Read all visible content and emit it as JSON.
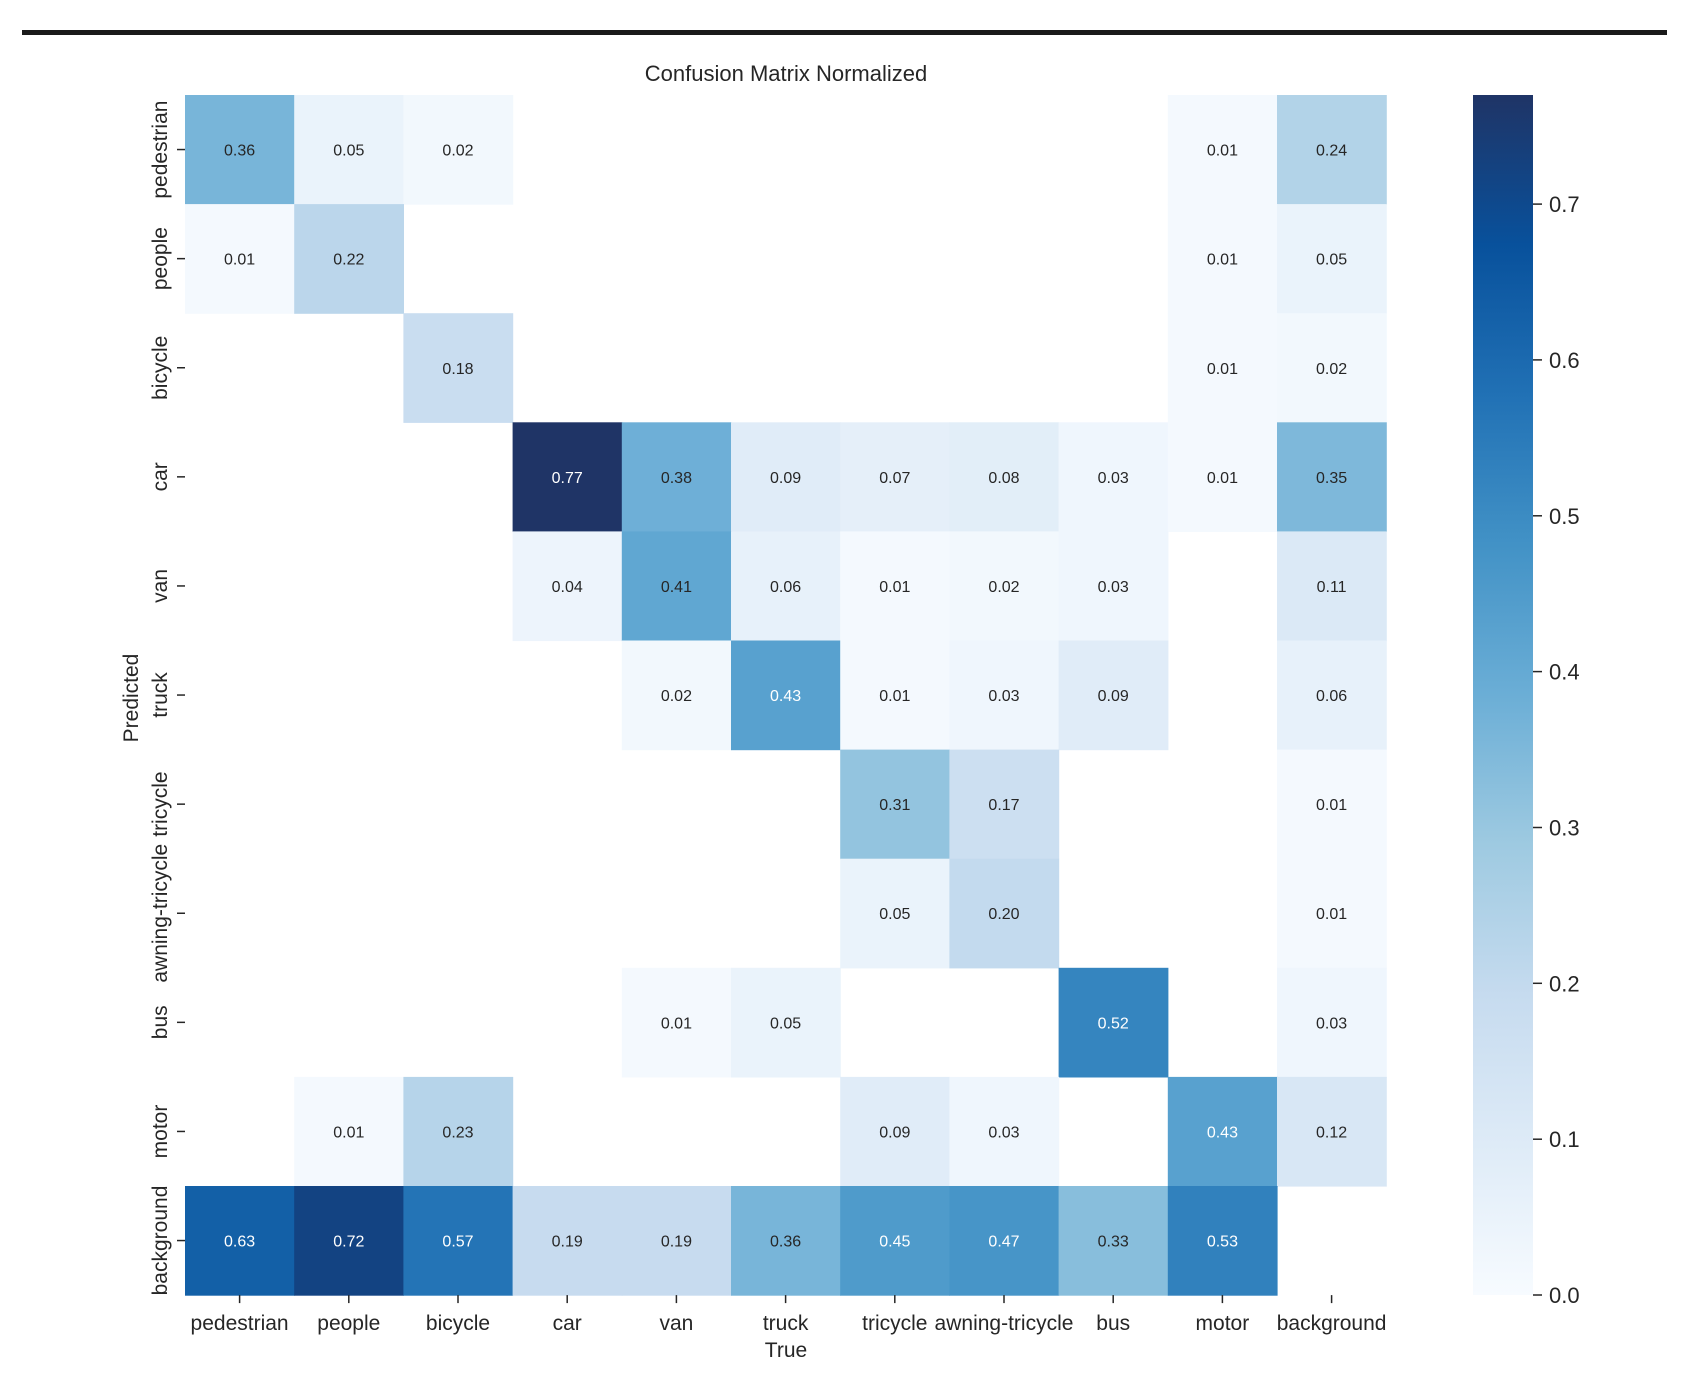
{
  "chart_data": {
    "type": "heatmap",
    "title": "Confusion Matrix Normalized",
    "xlabel": "True",
    "ylabel": "Predicted",
    "x_categories": [
      "pedestrian",
      "people",
      "bicycle",
      "car",
      "van",
      "truck",
      "tricycle",
      "awning-tricycle",
      "bus",
      "motor",
      "background"
    ],
    "y_categories": [
      "pedestrian",
      "people",
      "bicycle",
      "car",
      "van",
      "truck",
      "tricycle",
      "awning-tricycle",
      "bus",
      "motor",
      "background"
    ],
    "values": [
      [
        0.36,
        0.05,
        0.02,
        null,
        null,
        null,
        null,
        null,
        null,
        0.01,
        0.24
      ],
      [
        0.01,
        0.22,
        null,
        null,
        null,
        null,
        null,
        null,
        null,
        0.01,
        0.05
      ],
      [
        null,
        null,
        0.18,
        null,
        null,
        null,
        null,
        null,
        null,
        0.01,
        0.02
      ],
      [
        null,
        null,
        null,
        0.77,
        0.38,
        0.09,
        0.07,
        0.08,
        0.03,
        0.01,
        0.35
      ],
      [
        null,
        null,
        null,
        0.04,
        0.41,
        0.06,
        0.01,
        0.02,
        0.03,
        null,
        0.11
      ],
      [
        null,
        null,
        null,
        null,
        0.02,
        0.43,
        0.01,
        0.03,
        0.09,
        null,
        0.06
      ],
      [
        null,
        null,
        null,
        null,
        null,
        null,
        0.31,
        0.17,
        null,
        null,
        0.01
      ],
      [
        null,
        null,
        null,
        null,
        null,
        null,
        0.05,
        0.2,
        null,
        null,
        0.01
      ],
      [
        null,
        null,
        null,
        null,
        0.01,
        0.05,
        null,
        null,
        0.52,
        null,
        0.03
      ],
      [
        null,
        0.01,
        0.23,
        null,
        null,
        null,
        0.09,
        0.03,
        null,
        0.43,
        0.12
      ],
      [
        0.63,
        0.72,
        0.57,
        0.19,
        0.19,
        0.36,
        0.45,
        0.47,
        0.33,
        0.53,
        null
      ]
    ],
    "value_format": "0.00",
    "colorbar": {
      "range": [
        0.0,
        0.77
      ],
      "ticks": [
        0.0,
        0.1,
        0.2,
        0.3,
        0.4,
        0.5,
        0.6,
        0.7
      ],
      "tick_labels": [
        "0.0",
        "0.1",
        "0.2",
        "0.3",
        "0.4",
        "0.5",
        "0.6",
        "0.7"
      ],
      "colormap": "Blues",
      "colors": [
        "#f7fbff",
        "#deebf7",
        "#c6dbef",
        "#9ecae1",
        "#6baed6",
        "#4292c6",
        "#2171b5",
        "#08519c",
        "#1f3466"
      ]
    },
    "grid": false
  },
  "colors": {
    "frame_rule": "#1a1a1a",
    "text": "#262626"
  }
}
